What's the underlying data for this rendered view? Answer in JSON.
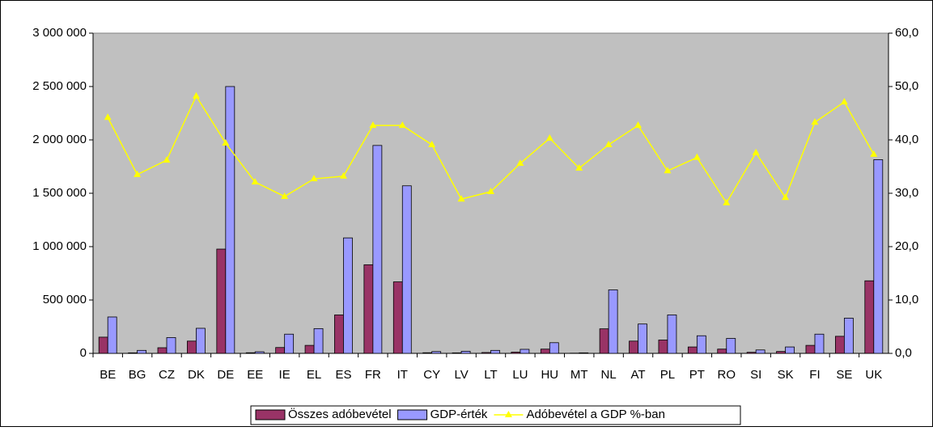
{
  "chart_data": {
    "type": "bar_line",
    "categories": [
      "BE",
      "BG",
      "CZ",
      "DK",
      "DE",
      "EE",
      "IE",
      "EL",
      "ES",
      "FR",
      "IT",
      "CY",
      "LV",
      "LT",
      "LU",
      "HU",
      "MT",
      "NL",
      "AT",
      "PL",
      "PT",
      "RO",
      "SI",
      "SK",
      "FI",
      "SE",
      "UK"
    ],
    "series": [
      {
        "name": "Összes adóbevétel",
        "color": "#993366",
        "values": [
          152000,
          5000,
          53000,
          115000,
          977000,
          6000,
          55000,
          75000,
          360000,
          830000,
          670000,
          6000,
          5000,
          8000,
          12000,
          40000,
          2000,
          230000,
          115000,
          125000,
          60000,
          40000,
          10000,
          18000,
          75000,
          160000,
          680000
        ]
      },
      {
        "name": "GDP-érték",
        "color": "#9999ff",
        "values": [
          341000,
          28000,
          148000,
          235000,
          2500000,
          15000,
          180000,
          232000,
          1082000,
          1948000,
          1570000,
          17000,
          20000,
          28000,
          38000,
          100000,
          5000,
          595000,
          275000,
          360000,
          165000,
          140000,
          32000,
          60000,
          180000,
          330000,
          1815000
        ]
      },
      {
        "name": "Adóbevétel a GDP %-ban",
        "color": "#ffff00",
        "axis": "y2",
        "values": [
          44.2,
          33.5,
          36.2,
          48.2,
          39.4,
          32.1,
          29.4,
          32.7,
          33.2,
          42.7,
          42.7,
          39.1,
          28.9,
          30.3,
          35.6,
          40.3,
          34.7,
          39.1,
          42.7,
          34.2,
          36.7,
          28.2,
          37.6,
          29.2,
          43.3,
          47.1,
          37.3
        ]
      }
    ],
    "ylim": [
      0,
      3000000
    ],
    "yticks": [
      {
        "value": 0,
        "label": "0"
      },
      {
        "value": 500000,
        "label": "500 000"
      },
      {
        "value": 1000000,
        "label": "1 000 000"
      },
      {
        "value": 1500000,
        "label": "1 500 000"
      },
      {
        "value": 2000000,
        "label": "2 000 000"
      },
      {
        "value": 2500000,
        "label": "2 500 000"
      },
      {
        "value": 3000000,
        "label": "3 000 000"
      }
    ],
    "y2lim": [
      0,
      60
    ],
    "y2ticks": [
      {
        "value": 0,
        "label": "0,0"
      },
      {
        "value": 10,
        "label": "10,0"
      },
      {
        "value": 20,
        "label": "20,0"
      },
      {
        "value": 30,
        "label": "30,0"
      },
      {
        "value": 40,
        "label": "40,0"
      },
      {
        "value": 50,
        "label": "50,0"
      },
      {
        "value": 60,
        "label": "60,0"
      }
    ],
    "legend": "bottom",
    "plot_background": "#c0c0c0"
  }
}
